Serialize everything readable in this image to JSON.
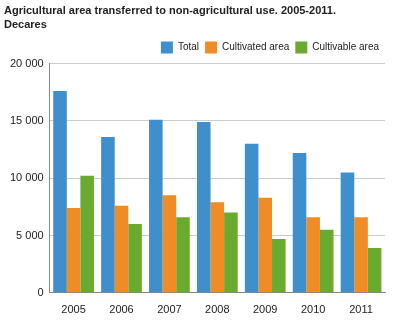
{
  "chart_data": {
    "type": "bar",
    "title": [
      "Agricultural area transferred to non-agricultural use. 2005-2011.",
      "Decares"
    ],
    "categories": [
      "2005",
      "2006",
      "2007",
      "2008",
      "2009",
      "2010",
      "2011"
    ],
    "series": [
      {
        "name": "Total",
        "color": "#3f8fcc",
        "values": [
          17600,
          13600,
          15100,
          14900,
          13000,
          12200,
          10500
        ]
      },
      {
        "name": "Cultivated area",
        "color": "#f08c26",
        "values": [
          7400,
          7600,
          8500,
          7900,
          8300,
          6600,
          6600
        ]
      },
      {
        "name": "Cultivable area",
        "color": "#6aab2f",
        "values": [
          10200,
          6000,
          6600,
          7000,
          4700,
          5500,
          3900
        ]
      }
    ],
    "ylim": [
      0,
      20000
    ],
    "yticks": [
      0,
      {
        "value": 5000,
        "label": "5 000"
      },
      {
        "value": 10000,
        "label": "10 000"
      },
      {
        "value": 15000,
        "label": "15 000"
      },
      {
        "value": 20000,
        "label": "20 000"
      }
    ],
    "grid": true,
    "legend": "top"
  }
}
